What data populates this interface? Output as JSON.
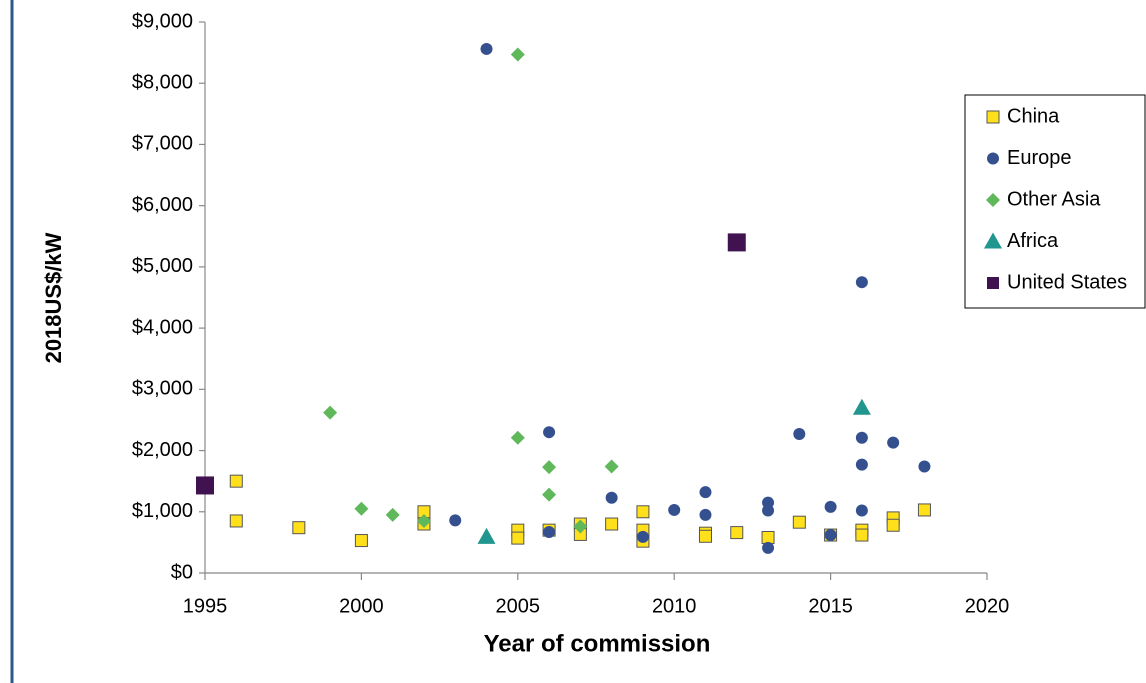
{
  "chart_data": {
    "type": "scatter",
    "xlabel": "Year of commission",
    "ylabel": "2018US$/kW",
    "xlim": [
      1995,
      2020
    ],
    "xticks": [
      1995,
      2000,
      2005,
      2010,
      2015,
      2020
    ],
    "ylim": [
      0,
      9000
    ],
    "yticks": [
      {
        "value": 0,
        "label": "$0"
      },
      {
        "value": 1000,
        "label": "$1,000"
      },
      {
        "value": 2000,
        "label": "$2,000"
      },
      {
        "value": 3000,
        "label": "$3,000"
      },
      {
        "value": 4000,
        "label": "$4,000"
      },
      {
        "value": 5000,
        "label": "$5,000"
      },
      {
        "value": 6000,
        "label": "$6,000"
      },
      {
        "value": 7000,
        "label": "$7,000"
      },
      {
        "value": 8000,
        "label": "$8,000"
      },
      {
        "value": 9000,
        "label": "$9,000"
      }
    ],
    "grid": false,
    "legend": "right",
    "series": [
      {
        "name": "China",
        "color": "#ffe01b",
        "marker": "square",
        "x": [
          1996,
          1996,
          1998,
          2000,
          2002,
          2002,
          2005,
          2005,
          2006,
          2007,
          2007,
          2008,
          2009,
          2009,
          2009,
          2011,
          2011,
          2012,
          2013,
          2014,
          2015,
          2016,
          2016,
          2017,
          2017,
          2018
        ],
        "values": [
          1500,
          850,
          740,
          530,
          1000,
          800,
          700,
          570,
          700,
          800,
          630,
          800,
          1000,
          700,
          520,
          650,
          600,
          660,
          580,
          830,
          620,
          700,
          620,
          900,
          780,
          1030
        ]
      },
      {
        "name": "Europe",
        "color": "#34508f",
        "marker": "circle",
        "x": [
          2003,
          2004,
          2006,
          2006,
          2008,
          2009,
          2010,
          2011,
          2011,
          2013,
          2013,
          2013,
          2014,
          2015,
          2015,
          2016,
          2016,
          2016,
          2016,
          2017,
          2018
        ],
        "values": [
          860,
          8560,
          2300,
          670,
          1230,
          590,
          1030,
          1320,
          950,
          1150,
          1020,
          410,
          2270,
          1080,
          620,
          4750,
          2210,
          1770,
          1020,
          2130,
          1740
        ]
      },
      {
        "name": "Other Asia",
        "color": "#5fb85a",
        "marker": "diamond",
        "x": [
          1999,
          2000,
          2001,
          2002,
          2005,
          2005,
          2006,
          2006,
          2007,
          2008
        ],
        "values": [
          2620,
          1050,
          950,
          850,
          8470,
          2210,
          1730,
          1280,
          760,
          1740
        ]
      },
      {
        "name": "Africa",
        "color": "#21968f",
        "marker": "triangle",
        "x": [
          2004,
          2016
        ],
        "values": [
          590,
          2700
        ]
      },
      {
        "name": "United States",
        "color": "#40124f",
        "marker": "bigsquare",
        "x": [
          1995,
          2012
        ],
        "values": [
          1430,
          5400
        ]
      }
    ]
  }
}
